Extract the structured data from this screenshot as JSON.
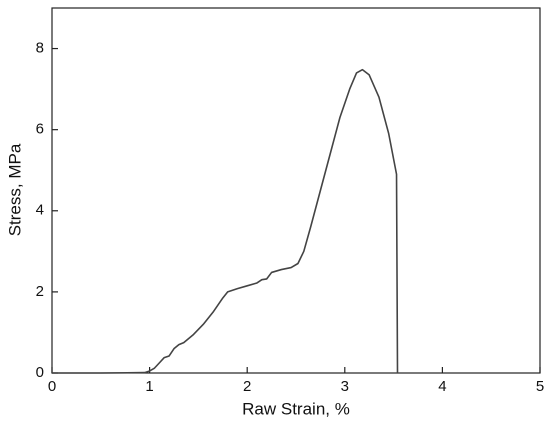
{
  "chart_data": {
    "type": "line",
    "x_label": "Raw Strain, %",
    "y_label": "Stress, MPa",
    "x": [
      0,
      0.5,
      0.95,
      1.0,
      1.05,
      1.1,
      1.15,
      1.2,
      1.25,
      1.3,
      1.35,
      1.45,
      1.55,
      1.65,
      1.75,
      1.8,
      1.9,
      2.0,
      2.1,
      2.15,
      2.2,
      2.25,
      2.35,
      2.45,
      2.52,
      2.58,
      2.65,
      2.75,
      2.85,
      2.95,
      3.05,
      3.12,
      3.18,
      3.25,
      3.35,
      3.45,
      3.53,
      3.54
    ],
    "values": [
      0,
      0,
      0.01,
      0.05,
      0.12,
      0.25,
      0.38,
      0.42,
      0.6,
      0.7,
      0.75,
      0.95,
      1.2,
      1.5,
      1.85,
      2.0,
      2.08,
      2.15,
      2.22,
      2.3,
      2.32,
      2.48,
      2.55,
      2.6,
      2.7,
      3.0,
      3.6,
      4.5,
      5.4,
      6.3,
      7.0,
      7.4,
      7.48,
      7.35,
      6.8,
      5.9,
      4.9,
      0
    ],
    "color": "#444444",
    "xlim": [
      0,
      5
    ],
    "xticks": [
      0,
      1,
      2,
      3,
      4,
      5
    ],
    "ylim": [
      0,
      9
    ],
    "yticks": [
      0,
      2,
      4,
      6,
      8
    ]
  }
}
